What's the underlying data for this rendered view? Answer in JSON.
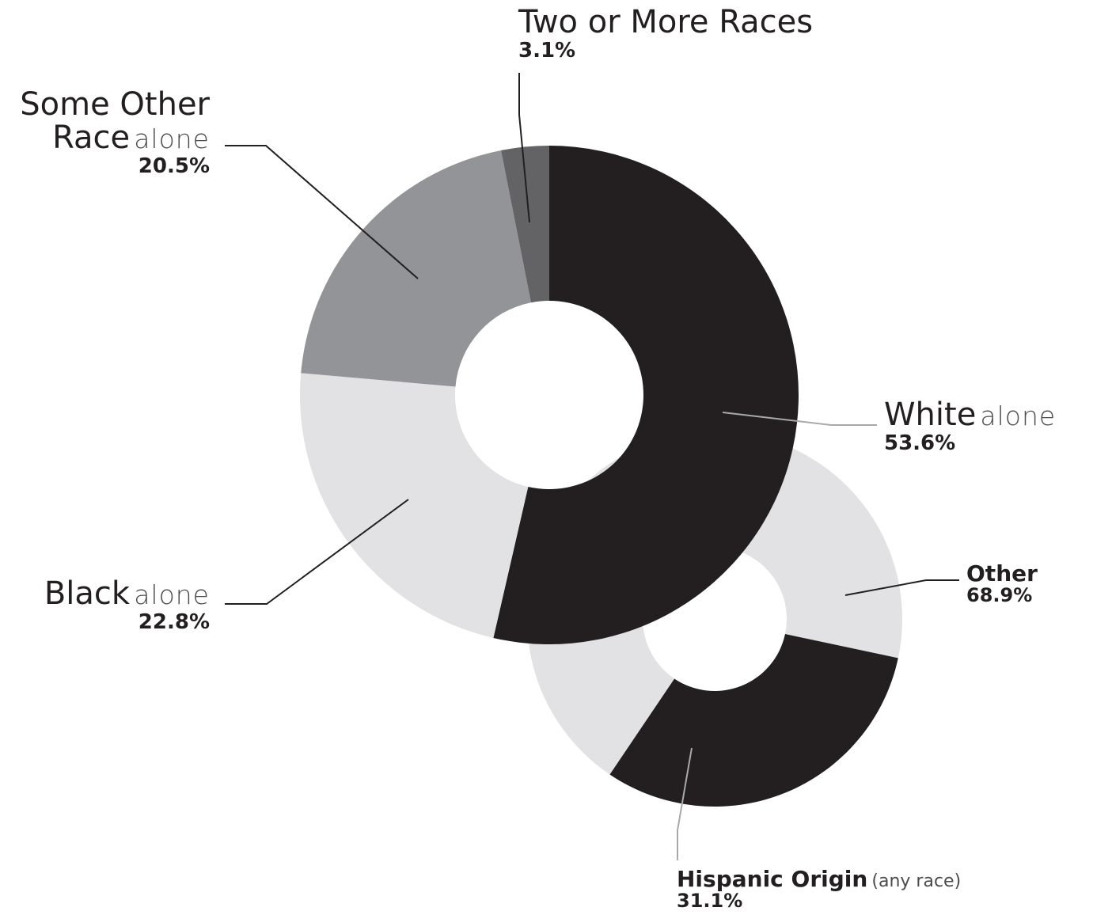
{
  "chart_data": [
    {
      "type": "pie",
      "variant": "donut",
      "categories": [
        "White alone",
        "Black alone",
        "Some Other Race alone",
        "Two or More Races"
      ],
      "values": [
        53.6,
        22.8,
        20.5,
        3.1
      ],
      "unit": "%",
      "colors": [
        "#231f20",
        "#e2e2e4",
        "#939497",
        "#636365"
      ]
    },
    {
      "type": "pie",
      "variant": "donut",
      "categories": [
        "Other",
        "Hispanic Origin (any race)"
      ],
      "values": [
        68.9,
        31.1
      ],
      "unit": "%",
      "colors": [
        "#e2e2e4",
        "#231f20"
      ]
    }
  ],
  "labels": {
    "two_or_more": {
      "name": "Two or More Races",
      "pct": "3.1%"
    },
    "some_other": {
      "name_line1": "Some Other",
      "name_line2": "Race",
      "qualifier": "alone",
      "pct": "20.5%"
    },
    "white": {
      "name": "White",
      "qualifier": "alone",
      "pct": "53.6%"
    },
    "black": {
      "name": "Black",
      "qualifier": "alone",
      "pct": "22.8%"
    },
    "other": {
      "name": "Other",
      "pct": "68.9%"
    },
    "hispanic": {
      "name": "Hispanic Origin",
      "qualifier": "(any race)",
      "pct": "31.1%"
    }
  }
}
